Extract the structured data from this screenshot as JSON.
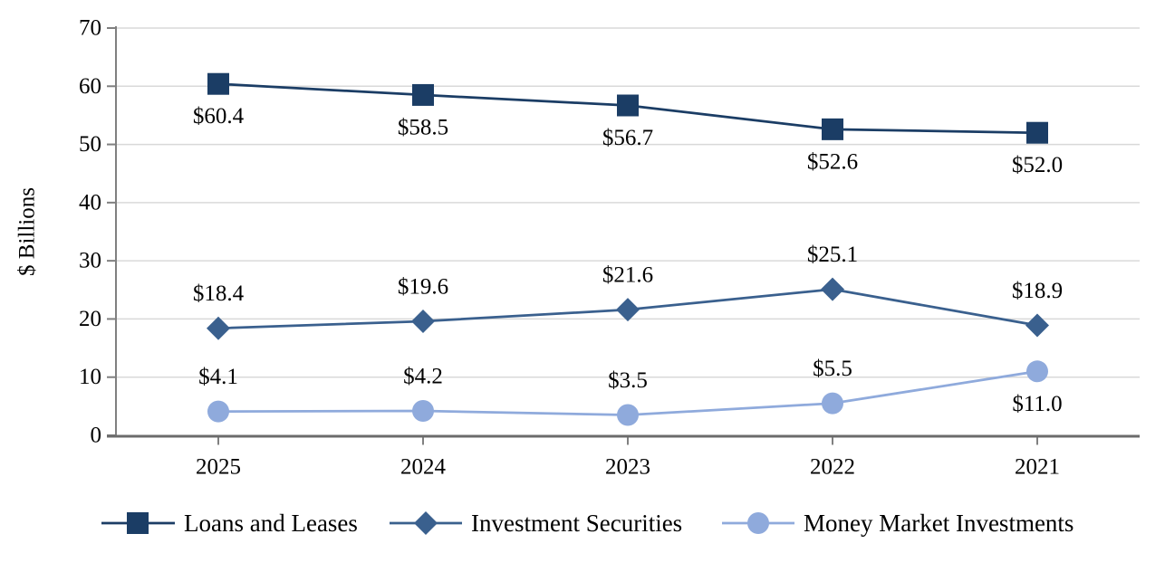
{
  "chart_data": {
    "type": "line",
    "title": "",
    "xlabel": "",
    "ylabel": "$ Billions",
    "categories": [
      "2025",
      "2024",
      "2023",
      "2022",
      "2021"
    ],
    "ylim": [
      0,
      70
    ],
    "yticks": [
      0,
      10,
      20,
      30,
      40,
      50,
      60,
      70
    ],
    "grid": true,
    "legend_position": "bottom",
    "series": [
      {
        "name": "Loans and Leases",
        "marker": "square",
        "color": "#1B3D65",
        "values": [
          60.4,
          58.5,
          56.7,
          52.6,
          52.0
        ],
        "labels": [
          "$60.4",
          "$58.5",
          "$56.7",
          "$52.6",
          "$52.0"
        ],
        "label_side": [
          "below",
          "below",
          "below",
          "below",
          "below"
        ]
      },
      {
        "name": "Investment Securities",
        "marker": "diamond",
        "color": "#3A608E",
        "values": [
          18.4,
          19.6,
          21.6,
          25.1,
          18.9
        ],
        "labels": [
          "$18.4",
          "$19.6",
          "$21.6",
          "$25.1",
          "$18.9"
        ],
        "label_side": [
          "above",
          "above",
          "above",
          "above",
          "above"
        ]
      },
      {
        "name": "Money Market Investments",
        "marker": "circle",
        "color": "#8FAADC",
        "values": [
          4.1,
          4.2,
          3.5,
          5.5,
          11.0
        ],
        "labels": [
          "$4.1",
          "$4.2",
          "$3.5",
          "$5.5",
          "$11.0"
        ],
        "label_side": [
          "above",
          "above",
          "above",
          "above",
          "below"
        ]
      }
    ],
    "colors": {
      "grid_line": "#D9D9D9",
      "y_axis_line": "#808080",
      "x_axis_line": "#6B6B6B",
      "tick_mark": "#808080",
      "label_text": "#000000"
    }
  }
}
